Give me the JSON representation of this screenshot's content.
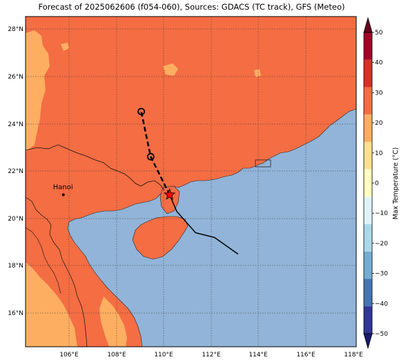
{
  "title": "Forecast of 2025062606 (f054-060), Sources: GDACS (TC track), GFS (Meteo)",
  "colorbar": {
    "label": "Max Temperature (°C)",
    "ticks": [
      "50",
      "40",
      "30",
      "20",
      "10",
      "0",
      "−10",
      "−20",
      "−30",
      "−40",
      "−50"
    ],
    "colors": [
      "#a50026",
      "#d73027",
      "#f46d43",
      "#fdae61",
      "#fee090",
      "#ffffbf",
      "#e0f3f8",
      "#abd9e9",
      "#74add1",
      "#4575b4",
      "#313695"
    ]
  },
  "axes": {
    "lon_labels": [
      "106°E",
      "108°E",
      "110°E",
      "112°E",
      "114°E",
      "116°E",
      "118°E"
    ],
    "lat_labels": [
      "28°N",
      "26°N",
      "24°N",
      "22°N",
      "20°N",
      "18°N",
      "16°N"
    ]
  },
  "city": {
    "name": "Hanoi"
  },
  "colors": {
    "land_warm": "#f46d43",
    "land_cool": "#fdae61",
    "sea": "#91b4d8",
    "track": "#000000",
    "storm_marker": "#ff0000"
  },
  "chart_data": {
    "type": "map",
    "extent": {
      "lon": [
        104.2,
        118.2
      ],
      "lat": [
        14.6,
        28.5
      ]
    },
    "gridlines": true,
    "legend_placement": "right colorbar",
    "past_track": [
      [
        113.2,
        18.5
      ],
      [
        112.2,
        19.2
      ],
      [
        111.4,
        19.4
      ],
      [
        110.6,
        20.3
      ],
      [
        110.3,
        21.0
      ]
    ],
    "forecast_track": [
      [
        110.3,
        21.0
      ],
      [
        109.5,
        22.6
      ],
      [
        109.1,
        24.5
      ]
    ],
    "forecast_points": [
      [
        109.5,
        22.6
      ],
      [
        109.1,
        24.5
      ]
    ],
    "current_position": [
      110.3,
      21.0
    ],
    "city_position": [
      105.8,
      21.0
    ]
  }
}
